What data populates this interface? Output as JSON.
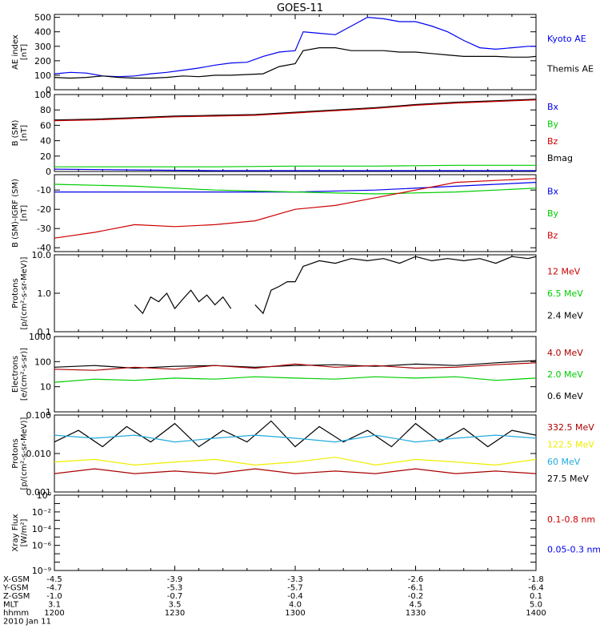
{
  "title": "GOES-11",
  "colors": {
    "black": "#000000",
    "blue": "#0000ee",
    "green": "#00cc00",
    "red": "#cc0000",
    "darkred": "#aa0000",
    "cyan": "#22aadd",
    "yellow": "#eeee00"
  },
  "chart_data": [
    {
      "id": "ae",
      "type": "line",
      "ylabel": [
        "AE index",
        "[nT]"
      ],
      "ylim": [
        0,
        520
      ],
      "yticks": [
        0,
        100,
        200,
        300,
        400,
        500
      ],
      "ylog": false,
      "legend": [
        {
          "label": "Kyoto AE",
          "color": "#0000ee"
        },
        {
          "label": "Themis AE",
          "color": "#000000"
        }
      ],
      "series": [
        {
          "name": "Kyoto AE",
          "color": "#0000ee",
          "x": [
            0,
            4,
            8,
            12,
            16,
            20,
            24,
            28,
            32,
            36,
            40,
            44,
            48,
            52,
            56,
            60,
            62,
            66,
            70,
            74,
            78,
            82,
            86,
            90,
            94,
            98,
            102,
            106,
            110,
            114,
            118,
            120
          ],
          "y": [
            110,
            120,
            115,
            95,
            90,
            95,
            110,
            120,
            135,
            150,
            170,
            185,
            190,
            230,
            260,
            270,
            400,
            390,
            380,
            440,
            500,
            490,
            470,
            470,
            440,
            400,
            340,
            290,
            280,
            290,
            300,
            300
          ]
        },
        {
          "name": "Themis AE",
          "color": "#000000",
          "x": [
            0,
            4,
            8,
            12,
            16,
            20,
            24,
            28,
            32,
            36,
            40,
            44,
            48,
            52,
            56,
            60,
            62,
            66,
            70,
            74,
            78,
            82,
            86,
            90,
            94,
            98,
            102,
            106,
            110,
            114,
            118,
            120
          ],
          "y": [
            85,
            80,
            85,
            95,
            85,
            80,
            80,
            85,
            95,
            90,
            100,
            100,
            105,
            110,
            160,
            180,
            270,
            290,
            290,
            270,
            270,
            270,
            260,
            260,
            250,
            240,
            230,
            230,
            230,
            225,
            225,
            230
          ]
        }
      ]
    },
    {
      "id": "bsm",
      "type": "line",
      "ylabel": [
        "B (SM)",
        "[nT]"
      ],
      "ylim": [
        0,
        100
      ],
      "yticks": [
        0,
        20,
        40,
        60,
        80,
        100
      ],
      "ylog": false,
      "legend": [
        {
          "label": "Bx",
          "color": "#0000ee"
        },
        {
          "label": "By",
          "color": "#00cc00"
        },
        {
          "label": "Bz",
          "color": "#cc0000"
        },
        {
          "label": "Bmag",
          "color": "#000000"
        }
      ],
      "series": [
        {
          "name": "Bmag",
          "color": "#000000",
          "x": [
            0,
            10,
            20,
            30,
            40,
            50,
            60,
            70,
            80,
            90,
            100,
            110,
            120
          ],
          "y": [
            67,
            68,
            70,
            72,
            73,
            74,
            77,
            80,
            83,
            87,
            90,
            92,
            94
          ]
        },
        {
          "name": "Bz",
          "color": "#cc0000",
          "x": [
            0,
            10,
            20,
            30,
            40,
            50,
            60,
            70,
            80,
            90,
            100,
            110,
            120
          ],
          "y": [
            66,
            67,
            69,
            71,
            72,
            73,
            76,
            79,
            82,
            86,
            89,
            91,
            93
          ]
        },
        {
          "name": "By",
          "color": "#00cc00",
          "x": [
            0,
            20,
            40,
            60,
            80,
            100,
            120
          ],
          "y": [
            6,
            6,
            6,
            7,
            7,
            8,
            8
          ]
        },
        {
          "name": "Bx",
          "color": "#0000ee",
          "x": [
            0,
            20,
            40,
            60,
            80,
            100,
            120
          ],
          "y": [
            3,
            2,
            1,
            1,
            1,
            1,
            1
          ]
        }
      ]
    },
    {
      "id": "bsub",
      "type": "line",
      "ylabel": [
        "B (SM)-IGRF (SM)",
        "[nT]"
      ],
      "ylim": [
        -42,
        -2
      ],
      "yticks": [
        -40,
        -30,
        -20,
        -10
      ],
      "ylog": false,
      "legend": [
        {
          "label": "Bx",
          "color": "#0000ee"
        },
        {
          "label": "By",
          "color": "#00cc00"
        },
        {
          "label": "Bz",
          "color": "#cc0000"
        }
      ],
      "series": [
        {
          "name": "Bx",
          "color": "#0000ee",
          "x": [
            0,
            20,
            40,
            60,
            80,
            100,
            120
          ],
          "y": [
            -11,
            -11,
            -11,
            -11,
            -10,
            -8,
            -6
          ]
        },
        {
          "name": "By",
          "color": "#00cc00",
          "x": [
            0,
            20,
            40,
            60,
            80,
            100,
            120
          ],
          "y": [
            -7,
            -8,
            -10,
            -11,
            -12,
            -11,
            -9
          ]
        },
        {
          "name": "Bz",
          "color": "#cc0000",
          "x": [
            0,
            10,
            20,
            30,
            40,
            50,
            60,
            70,
            80,
            90,
            100,
            110,
            120
          ],
          "y": [
            -35,
            -32,
            -28,
            -29,
            -28,
            -26,
            -20,
            -18,
            -14,
            -10,
            -6,
            -5,
            -4
          ]
        }
      ]
    },
    {
      "id": "protons",
      "type": "line",
      "ylabel": [
        "Protons",
        "[p/(cm²-s-sr-MeV)]"
      ],
      "ylim": [
        0.1,
        10
      ],
      "yticks": [
        0.1,
        1,
        10
      ],
      "yticklabels": [
        "0.1",
        "1.0",
        "10.0"
      ],
      "ylog": true,
      "legend": [
        {
          "label": "12 MeV",
          "color": "#cc0000"
        },
        {
          "label": "6.5 MeV",
          "color": "#00cc00"
        },
        {
          "label": "2.4 MeV",
          "color": "#000000"
        }
      ],
      "series": [
        {
          "name": "2.4 MeV",
          "color": "#000000",
          "x": [
            50,
            52,
            54,
            56,
            58,
            60,
            62,
            66,
            70,
            74,
            78,
            82,
            86,
            90,
            94,
            98,
            102,
            106,
            110,
            114,
            118,
            120
          ],
          "y": [
            0.5,
            0.3,
            1.2,
            1.5,
            2,
            2,
            5,
            7,
            6,
            8,
            7,
            8,
            6,
            9,
            7,
            8,
            7,
            8,
            6,
            9,
            8,
            9
          ]
        },
        {
          "name": "2.4 MeV (early)",
          "color": "#000000",
          "x": [
            20,
            22,
            24,
            26,
            28,
            30,
            32,
            34,
            36,
            38,
            40,
            42,
            44
          ],
          "y": [
            0.5,
            0.3,
            0.8,
            0.6,
            1.0,
            0.4,
            0.7,
            1.2,
            0.6,
            0.9,
            0.5,
            0.8,
            0.4
          ]
        }
      ]
    },
    {
      "id": "electrons",
      "type": "line",
      "ylabel": [
        "Electrons",
        "[e/(cm²-s-sr)]"
      ],
      "ylim": [
        1,
        1000
      ],
      "yticks": [
        1,
        10,
        100,
        1000
      ],
      "yticklabels": [
        "1",
        "10",
        "100",
        "1000"
      ],
      "ylog": true,
      "legend": [
        {
          "label": "4.0 MeV",
          "color": "#aa0000"
        },
        {
          "label": "2.0 MeV",
          "color": "#00cc00"
        },
        {
          "label": "0.6 MeV",
          "color": "#000000"
        }
      ],
      "series": [
        {
          "name": "0.6 MeV",
          "color": "#000000",
          "x": [
            0,
            10,
            20,
            30,
            40,
            50,
            60,
            70,
            80,
            90,
            100,
            110,
            120
          ],
          "y": [
            60,
            70,
            55,
            65,
            70,
            60,
            70,
            75,
            65,
            80,
            70,
            90,
            110
          ]
        },
        {
          "name": "4.0 MeV",
          "color": "#aa0000",
          "x": [
            0,
            10,
            20,
            30,
            40,
            50,
            60,
            70,
            80,
            90,
            100,
            110,
            120
          ],
          "y": [
            50,
            45,
            60,
            50,
            70,
            55,
            80,
            60,
            70,
            55,
            60,
            75,
            90
          ]
        },
        {
          "name": "2.0 MeV",
          "color": "#00cc00",
          "x": [
            0,
            10,
            20,
            30,
            40,
            50,
            60,
            70,
            80,
            90,
            100,
            110,
            120
          ],
          "y": [
            15,
            20,
            18,
            22,
            20,
            25,
            22,
            20,
            25,
            22,
            25,
            18,
            22
          ]
        }
      ]
    },
    {
      "id": "protons2",
      "type": "line",
      "ylabel": [
        "Protons",
        "[p/(cm²-s-sr-MeV)]"
      ],
      "ylim": [
        0.001,
        0.1
      ],
      "yticks": [
        0.001,
        0.01,
        0.1
      ],
      "yticklabels": [
        "0.001",
        "0.010",
        "0.100"
      ],
      "ylog": true,
      "legend": [
        {
          "label": "332.5 MeV",
          "color": "#aa0000"
        },
        {
          "label": "122.5 MeV",
          "color": "#eeee00"
        },
        {
          "label": "60 MeV",
          "color": "#22aadd"
        },
        {
          "label": "27.5 MeV",
          "color": "#000000"
        }
      ],
      "series": [
        {
          "name": "27.5 MeV",
          "color": "#000000",
          "x": [
            0,
            6,
            12,
            18,
            24,
            30,
            36,
            42,
            48,
            54,
            60,
            66,
            72,
            78,
            84,
            90,
            96,
            102,
            108,
            114,
            120
          ],
          "y": [
            0.02,
            0.04,
            0.015,
            0.05,
            0.02,
            0.06,
            0.015,
            0.04,
            0.02,
            0.07,
            0.015,
            0.05,
            0.02,
            0.04,
            0.015,
            0.06,
            0.02,
            0.045,
            0.015,
            0.04,
            0.03
          ]
        },
        {
          "name": "60 MeV",
          "color": "#22aadd",
          "x": [
            0,
            10,
            20,
            30,
            40,
            50,
            60,
            70,
            80,
            90,
            100,
            110,
            120
          ],
          "y": [
            0.03,
            0.025,
            0.03,
            0.02,
            0.025,
            0.03,
            0.025,
            0.02,
            0.03,
            0.02,
            0.025,
            0.03,
            0.025
          ]
        },
        {
          "name": "122.5 MeV",
          "color": "#eeee00",
          "x": [
            0,
            10,
            20,
            30,
            40,
            50,
            60,
            70,
            80,
            90,
            100,
            110,
            120
          ],
          "y": [
            0.006,
            0.007,
            0.005,
            0.006,
            0.007,
            0.005,
            0.006,
            0.008,
            0.005,
            0.007,
            0.006,
            0.005,
            0.007
          ]
        },
        {
          "name": "332.5 MeV",
          "color": "#aa0000",
          "x": [
            0,
            10,
            20,
            30,
            40,
            50,
            60,
            70,
            80,
            90,
            100,
            110,
            120
          ],
          "y": [
            0.003,
            0.004,
            0.003,
            0.0035,
            0.003,
            0.004,
            0.003,
            0.0035,
            0.003,
            0.004,
            0.003,
            0.0035,
            0.003
          ]
        }
      ]
    },
    {
      "id": "xray",
      "type": "line",
      "ylabel": [
        "Xray Flux",
        "[W/m²]"
      ],
      "ylim": [
        1e-09,
        1
      ],
      "yticks": [
        1e-09,
        1e-08,
        1e-07,
        1e-06,
        1e-05,
        0.0001,
        0.001,
        0.01,
        0.1,
        1
      ],
      "yticklabels": [
        "10⁻⁹",
        "",
        "",
        "10⁻⁶",
        "",
        "10⁻⁴",
        "",
        "10⁻²",
        "",
        "10⁰"
      ],
      "ylog": true,
      "legend": [
        {
          "label": "0.1-0.8 nm",
          "color": "#cc0000"
        },
        {
          "label": "0.05-0.3 nm",
          "color": "#0000ee"
        }
      ],
      "series": []
    }
  ],
  "xaxis": {
    "xlim": [
      0,
      120
    ],
    "ticks": [
      0,
      30,
      60,
      90,
      120
    ],
    "rows": [
      {
        "label": "X-GSM",
        "values": [
          "-4.5",
          "-3.9",
          "-3.3",
          "-2.6",
          "-1.8"
        ]
      },
      {
        "label": "Y-GSM",
        "values": [
          "-4.7",
          "-5.3",
          "-5.7",
          "-6.1",
          "-6.4"
        ]
      },
      {
        "label": "Z-GSM",
        "values": [
          "-1.0",
          "-0.7",
          "-0.4",
          "-0.2",
          "0.1"
        ]
      },
      {
        "label": "MLT",
        "values": [
          "3.1",
          "3.5",
          "4.0",
          "4.5",
          "5.0"
        ]
      },
      {
        "label": "hhmm",
        "values": [
          "1200",
          "1230",
          "1300",
          "1330",
          "1400"
        ]
      }
    ],
    "date": "2010 Jan 11"
  }
}
